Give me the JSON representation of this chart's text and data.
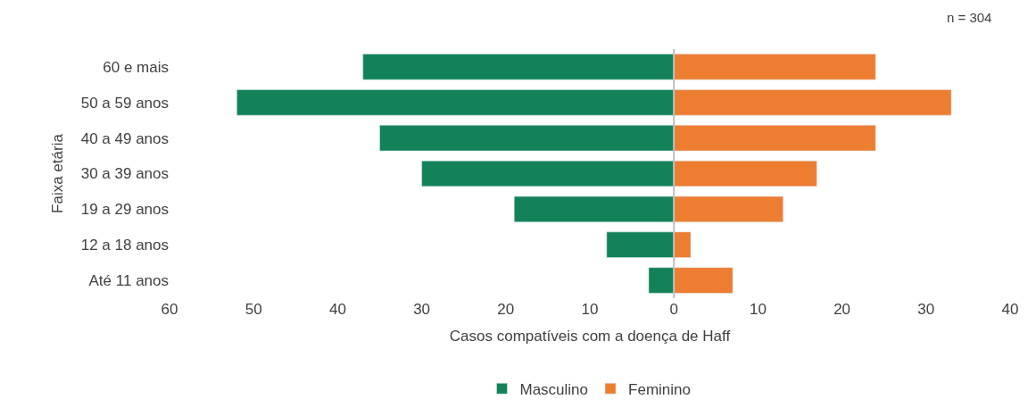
{
  "chart_data": {
    "type": "bar",
    "orientation": "horizontal",
    "xlabel": "Casos compatíveis com a doença de Haff",
    "ylabel": "Faixa etária",
    "categories": [
      "60 e mais",
      "50 a 59 anos",
      "40 a 49 anos",
      "30 a 39 anos",
      "19 a 29 anos",
      "12 a 18 anos",
      "Até 11 anos"
    ],
    "series": [
      {
        "name": "Masculino",
        "color": "#138259",
        "values": [
          -37,
          -52,
          -35,
          -30,
          -19,
          -8,
          -3
        ]
      },
      {
        "name": "Feminino",
        "color": "#ed7d31",
        "values": [
          24,
          33,
          24,
          17,
          13,
          2,
          7
        ]
      }
    ],
    "xlim": [
      -60,
      40
    ],
    "xticks": [
      {
        "value": -60,
        "label": "60"
      },
      {
        "value": -50,
        "label": "50"
      },
      {
        "value": -40,
        "label": "40"
      },
      {
        "value": -30,
        "label": "30"
      },
      {
        "value": -20,
        "label": "20"
      },
      {
        "value": -10,
        "label": "10"
      },
      0,
      10,
      20,
      30,
      40
    ],
    "annotations": [
      "n = 304"
    ],
    "ref_lines": [
      {
        "axis": "x",
        "value": 0,
        "color": "#bfbfbf"
      }
    ],
    "stacked": true,
    "legend": "bottom"
  }
}
